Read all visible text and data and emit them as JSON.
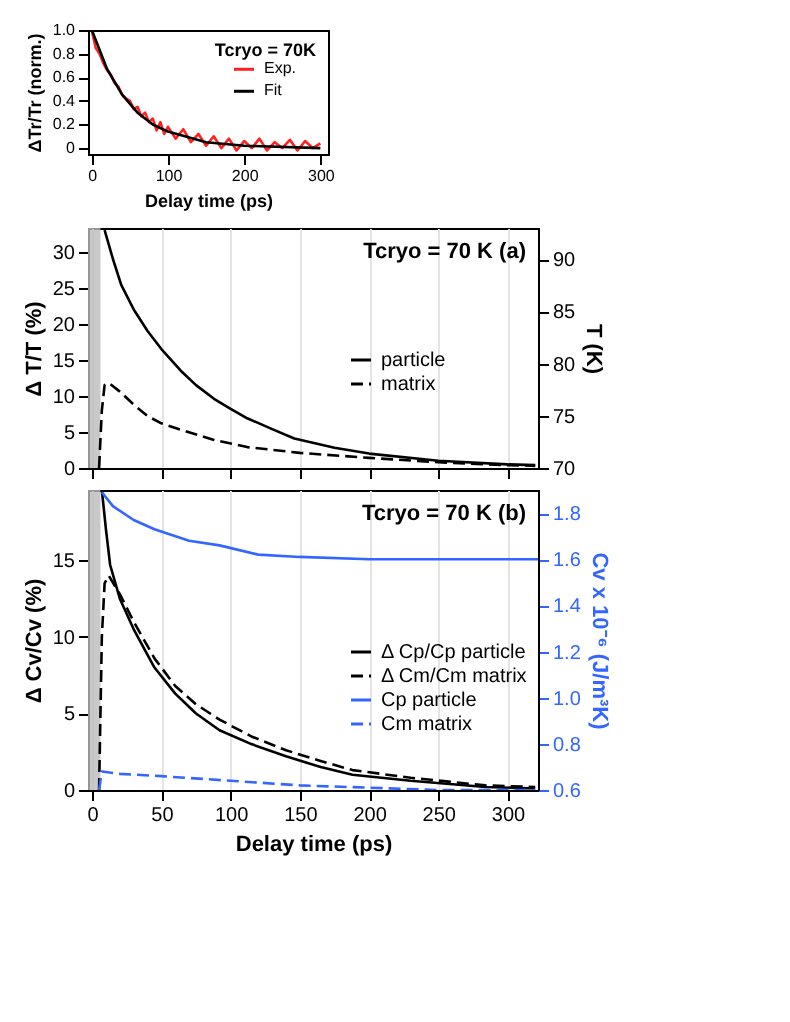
{
  "chart_data": [
    {
      "type": "line",
      "xlabel": "Delay time (ps)",
      "ylabel": "ΔTr/Tr (norm.)",
      "xlim": [
        -5,
        310
      ],
      "xticks": [
        0,
        100,
        200,
        300
      ],
      "ylim": [
        -0.05,
        1.0
      ],
      "yticks": [
        0,
        0.2,
        0.4,
        0.6,
        0.8,
        {
          "value": 1,
          "label": "1.0"
        }
      ],
      "legend": "top right",
      "annotations": [
        "Tcryo = 70K"
      ],
      "series": [
        {
          "name": "Exp.",
          "color": "#ff2020",
          "line_style": "solid",
          "x": [
            0,
            5,
            10,
            15,
            20,
            25,
            30,
            35,
            40,
            45,
            50,
            55,
            60,
            65,
            70,
            75,
            80,
            85,
            90,
            95,
            100,
            110,
            120,
            130,
            140,
            150,
            160,
            170,
            180,
            190,
            200,
            210,
            220,
            230,
            240,
            250,
            260,
            270,
            280,
            290,
            300
          ],
          "values": [
            1.0,
            0.85,
            0.8,
            0.72,
            0.66,
            0.62,
            0.55,
            0.52,
            0.45,
            0.42,
            0.4,
            0.33,
            0.35,
            0.27,
            0.3,
            0.22,
            0.25,
            0.15,
            0.22,
            0.12,
            0.18,
            0.08,
            0.16,
            0.05,
            0.12,
            0.02,
            0.1,
            0.0,
            0.08,
            -0.02,
            0.06,
            0.0,
            0.08,
            -0.02,
            0.05,
            0.0,
            0.07,
            -0.02,
            0.06,
            0.0,
            0.04
          ]
        },
        {
          "name": "Fit",
          "color": "#000000",
          "line_style": "solid",
          "x": [
            0,
            20,
            40,
            60,
            80,
            100,
            150,
            200,
            300
          ],
          "values": [
            1.0,
            0.67,
            0.45,
            0.3,
            0.2,
            0.14,
            0.05,
            0.02,
            0.0
          ]
        }
      ]
    },
    {
      "type": "line",
      "ylabel": "Δ T/T (%)",
      "y2label": "T (K)",
      "xlim": [
        -3,
        322
      ],
      "xticks": [
        0,
        50,
        100,
        150,
        200,
        250,
        300
      ],
      "ylim": [
        0,
        33.3
      ],
      "yticks": [
        0,
        5,
        10,
        15,
        20,
        25,
        30
      ],
      "y2lim": [
        70,
        93
      ],
      "y2ticks": [
        70,
        75,
        80,
        85,
        90
      ],
      "grid": "x",
      "legend": "right",
      "tick_labels": "y",
      "annotations": [
        "Tcryo = 70 K  (a)"
      ],
      "bands": [
        {
          "axis": "x",
          "from": -3,
          "to": 6,
          "color": "#bbbbbb"
        }
      ],
      "series": [
        {
          "name": "particle",
          "color": "#000000",
          "line_style": "solid",
          "x": [
            9,
            15,
            21,
            30,
            40,
            50,
            64,
            75,
            88,
            100,
            112,
            130,
            146,
            175,
            200,
            250,
            300,
            320
          ],
          "values": [
            33,
            29,
            25.4,
            22,
            19,
            16.5,
            13.5,
            11.5,
            9.6,
            8.2,
            6.9,
            5.4,
            4.1,
            2.8,
            2.0,
            1.0,
            0.5,
            0.4
          ]
        },
        {
          "name": "matrix",
          "color": "#000000",
          "line_style": "dashed",
          "x": [
            5,
            7,
            9,
            12,
            20,
            30,
            40,
            50,
            64,
            88,
            112,
            150,
            200,
            250,
            300,
            320
          ],
          "values": [
            0,
            8,
            11.5,
            11.8,
            10.6,
            8.8,
            7.2,
            6.2,
            5.3,
            3.9,
            2.9,
            2.1,
            1.4,
            0.8,
            0.4,
            0.3
          ]
        }
      ]
    },
    {
      "type": "line",
      "xlabel": "Delay time (ps)",
      "ylabel": "Δ Cv/Cv (%)",
      "y2label": "Cv x 10⁻⁶ (J/m³K)",
      "xlim": [
        -3,
        322
      ],
      "xticks": [
        0,
        50,
        100,
        150,
        200,
        250,
        300
      ],
      "ylim": [
        0,
        19.6
      ],
      "yticks": [
        0,
        5,
        10,
        15
      ],
      "y2lim": [
        0.6,
        1.9
      ],
      "y2ticks": [
        0.6,
        0.8,
        {
          "value": 1,
          "label": "1.0"
        },
        1.2,
        1.4,
        1.6,
        1.8
      ],
      "grid": "x",
      "legend": "right",
      "annotations": [
        "Tcryo = 70 K  (b)"
      ],
      "bands": [
        {
          "axis": "x",
          "from": -3,
          "to": 6,
          "color": "#bbbbbb"
        }
      ],
      "series": [
        {
          "name": "Δ Cp/Cp particle",
          "color": "#000000",
          "line_style": "solid",
          "x": [
            7,
            10,
            13,
            20,
            30,
            45,
            60,
            75,
            92,
            115,
            140,
            165,
            188,
            230,
            284,
            320
          ],
          "values": [
            19.6,
            17,
            14.7,
            12.5,
            10.5,
            8,
            6.3,
            5,
            3.9,
            3,
            2.2,
            1.5,
            1.0,
            0.6,
            0.2,
            0.1
          ]
        },
        {
          "name": "Δ Cm/Cm matrix",
          "color": "#000000",
          "line_style": "dashed",
          "x": [
            5,
            7,
            9,
            12,
            20,
            30,
            45,
            60,
            75,
            92,
            115,
            140,
            165,
            188,
            230,
            284,
            320
          ],
          "values": [
            0,
            10,
            13.5,
            14,
            12.8,
            11,
            8.6,
            6.8,
            5.6,
            4.6,
            3.5,
            2.6,
            1.9,
            1.3,
            0.8,
            0.3,
            0.2
          ]
        },
        {
          "name": "Cp particle",
          "color": "#3366ff",
          "line_style": "solid",
          "axis": "y2",
          "x": [
            7,
            15,
            30,
            45,
            70,
            92,
            120,
            150,
            200,
            250,
            322
          ],
          "values": [
            1.89,
            1.83,
            1.77,
            1.73,
            1.68,
            1.66,
            1.62,
            1.61,
            1.6,
            1.6,
            1.6
          ]
        },
        {
          "name": "Cm matrix",
          "color": "#3366ff",
          "line_style": "dashed",
          "axis": "y2",
          "x": [
            5,
            7,
            20,
            50,
            100,
            150,
            200,
            250,
            320
          ],
          "values": [
            0.6,
            0.68,
            0.67,
            0.66,
            0.64,
            0.62,
            0.61,
            0.6,
            0.6
          ]
        }
      ]
    }
  ]
}
